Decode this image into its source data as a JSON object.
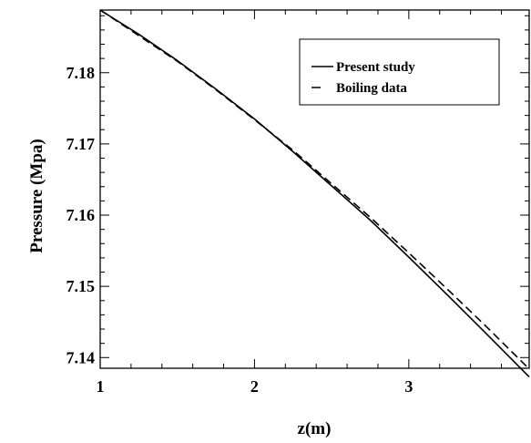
{
  "chart_data": {
    "type": "line",
    "title": "",
    "xlabel": "z(m)",
    "ylabel": "Pressure (Mpa)",
    "xlim": [
      1.0,
      3.78
    ],
    "ylim": [
      7.1385,
      7.1888
    ],
    "x_ticks": [
      "1",
      "2",
      "3"
    ],
    "x_tick_values": [
      1,
      2,
      3
    ],
    "y_ticks": [
      "7.14",
      "7.15",
      "7.16",
      "7.17",
      "7.18"
    ],
    "y_tick_values": [
      7.14,
      7.15,
      7.16,
      7.17,
      7.18
    ],
    "grid": false,
    "legend_position": "top-right",
    "series": [
      {
        "name": "Present study",
        "style": "solid",
        "color": "#000000",
        "x": [
          1.0,
          1.25,
          1.5,
          1.75,
          2.0,
          2.25,
          2.5,
          2.75,
          3.0,
          3.25,
          3.5,
          3.78
        ],
        "y": [
          7.1888,
          7.1854,
          7.1817,
          7.1777,
          7.1735,
          7.1689,
          7.1641,
          7.1593,
          7.1541,
          7.1488,
          7.1434,
          7.1373
        ]
      },
      {
        "name": "Boiling data",
        "style": "dashed",
        "color": "#000000",
        "x": [
          1.0,
          1.25,
          1.5,
          1.75,
          2.0,
          2.25,
          2.5,
          2.75,
          3.0,
          3.25,
          3.5,
          3.78
        ],
        "y": [
          7.1888,
          7.1852,
          7.1816,
          7.1776,
          7.1734,
          7.1691,
          7.1644,
          7.1597,
          7.1547,
          7.1496,
          7.1444,
          7.1384
        ]
      }
    ]
  }
}
